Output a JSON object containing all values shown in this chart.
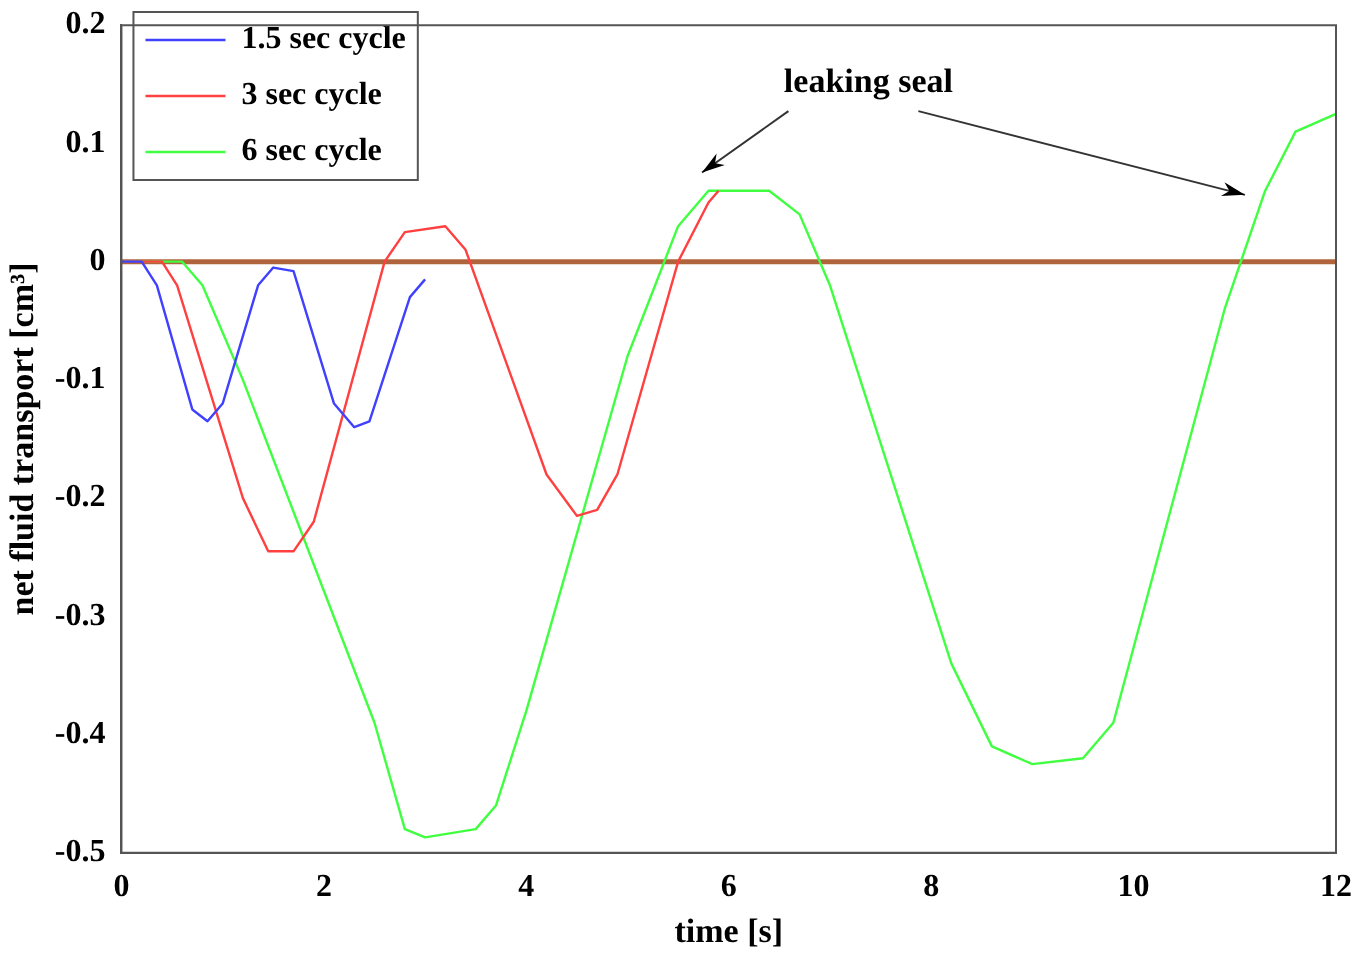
{
  "chart_data": {
    "type": "line",
    "xlabel": "time [s]",
    "ylabel": "net fluid transport [cm³]",
    "xlim": [
      0,
      12
    ],
    "xticks": [
      0,
      2,
      4,
      6,
      8,
      10,
      12
    ],
    "ylim": [
      -0.5,
      0.2
    ],
    "yticks": [
      -0.5,
      -0.4,
      -0.3,
      -0.2,
      -0.1,
      0,
      0.1,
      0.2
    ],
    "grid": false,
    "legend": "top left",
    "marker": "none",
    "line_style": "solid",
    "series": [
      {
        "name": "1.5 sec cycle",
        "color": "#4040ff",
        "x": [
          0,
          0.2,
          0.35,
          0.7,
          0.85,
          1.0,
          1.35,
          1.5,
          1.7,
          2.1,
          2.3,
          2.45,
          2.85,
          3.0
        ],
        "values": [
          0,
          0,
          -0.02,
          -0.125,
          -0.135,
          -0.12,
          -0.02,
          -0.005,
          -0.008,
          -0.12,
          -0.14,
          -0.135,
          -0.03,
          -0.015
        ]
      },
      {
        "name": "3 sec cycle",
        "color": "#ff4040",
        "x": [
          0,
          0.4,
          0.55,
          1.2,
          1.45,
          1.7,
          1.9,
          2.6,
          2.8,
          3.2,
          3.4,
          4.2,
          4.5,
          4.7,
          4.9,
          5.5,
          5.8,
          5.9
        ],
        "values": [
          0,
          0,
          -0.02,
          -0.2,
          -0.245,
          -0.245,
          -0.22,
          0,
          0.025,
          0.03,
          0.01,
          -0.18,
          -0.215,
          -0.21,
          -0.18,
          0,
          0.05,
          0.06
        ]
      },
      {
        "name": "6 sec cycle",
        "color": "#40ff40",
        "x": [
          0,
          0.6,
          0.8,
          1.2,
          2.5,
          2.8,
          3.0,
          3.5,
          3.7,
          4.0,
          5.0,
          5.5,
          5.8,
          6.4,
          6.7,
          7.0,
          8.2,
          8.6,
          9.0,
          9.5,
          9.8,
          10.9,
          11.3,
          11.6,
          12
        ],
        "values": [
          0,
          0,
          -0.02,
          -0.1,
          -0.39,
          -0.48,
          -0.487,
          -0.48,
          -0.46,
          -0.38,
          -0.08,
          0.03,
          0.06,
          0.06,
          0.04,
          -0.02,
          -0.34,
          -0.41,
          -0.425,
          -0.42,
          -0.39,
          -0.04,
          0.06,
          0.11,
          0.125
        ]
      }
    ],
    "ref_lines": [
      {
        "axis": "y",
        "value": 0,
        "color": "#b0643c",
        "line_style": "solid"
      }
    ],
    "annotations": [
      "leaking seal"
    ]
  }
}
